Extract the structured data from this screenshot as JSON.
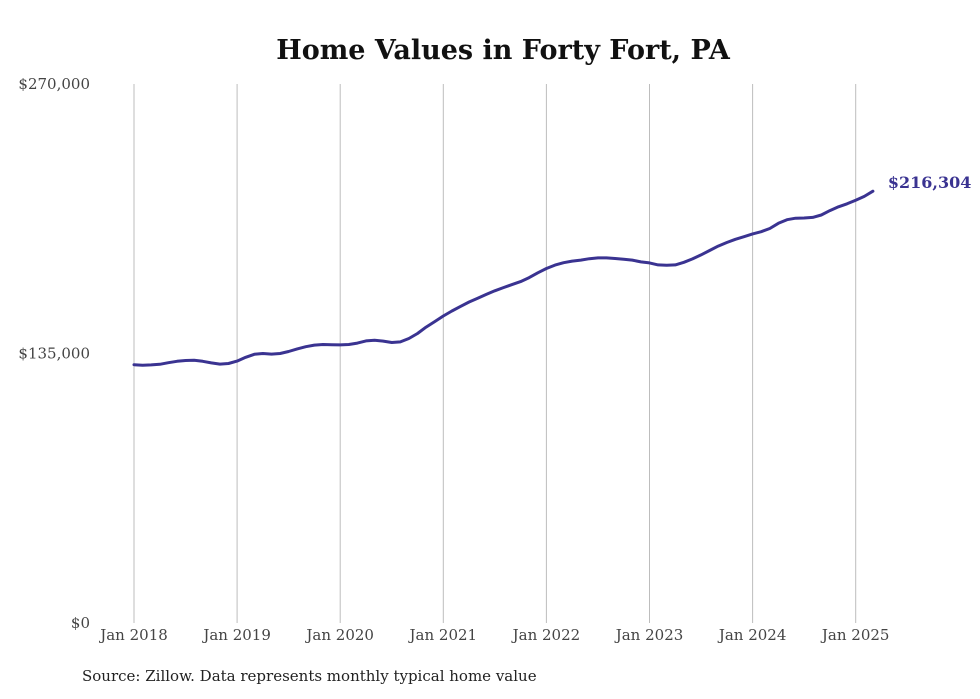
{
  "chart_data": {
    "type": "line",
    "title": "Home Values in Forty Fort, PA",
    "xlabel": "",
    "ylabel": "",
    "ylim": [
      0,
      270000
    ],
    "y_ticks": [
      "$270,000",
      "$135,000",
      "$0"
    ],
    "y_tick_values": [
      270000,
      135000,
      0
    ],
    "x_ticks": [
      "Jan 2018",
      "Jan 2019",
      "Jan 2020",
      "Jan 2021",
      "Jan 2022",
      "Jan 2023",
      "Jan 2024",
      "Jan 2025"
    ],
    "grid": "vertical",
    "line_color": "#3a3391",
    "end_label": "$216,304",
    "series": [
      {
        "points": [
          [
            "2018-01",
            129400
          ],
          [
            "2018-02",
            129100
          ],
          [
            "2018-03",
            129300
          ],
          [
            "2018-04",
            129600
          ],
          [
            "2018-05",
            130400
          ],
          [
            "2018-06",
            131100
          ],
          [
            "2018-07",
            131500
          ],
          [
            "2018-08",
            131600
          ],
          [
            "2018-09",
            131100
          ],
          [
            "2018-10",
            130300
          ],
          [
            "2018-11",
            129700
          ],
          [
            "2018-12",
            130000
          ],
          [
            "2019-01",
            131200
          ],
          [
            "2019-02",
            133100
          ],
          [
            "2019-03",
            134600
          ],
          [
            "2019-04",
            135000
          ],
          [
            "2019-05",
            134700
          ],
          [
            "2019-06",
            135000
          ],
          [
            "2019-07",
            136000
          ],
          [
            "2019-08",
            137300
          ],
          [
            "2019-09",
            138400
          ],
          [
            "2019-10",
            139200
          ],
          [
            "2019-11",
            139500
          ],
          [
            "2019-12",
            139400
          ],
          [
            "2020-01",
            139300
          ],
          [
            "2020-02",
            139500
          ],
          [
            "2020-03",
            140200
          ],
          [
            "2020-04",
            141300
          ],
          [
            "2020-05",
            141600
          ],
          [
            "2020-06",
            141200
          ],
          [
            "2020-07",
            140500
          ],
          [
            "2020-08",
            140800
          ],
          [
            "2020-09",
            142500
          ],
          [
            "2020-10",
            145000
          ],
          [
            "2020-11",
            148200
          ],
          [
            "2020-12",
            151000
          ],
          [
            "2021-01",
            153800
          ],
          [
            "2021-02",
            156300
          ],
          [
            "2021-03",
            158600
          ],
          [
            "2021-04",
            160800
          ],
          [
            "2021-05",
            162700
          ],
          [
            "2021-06",
            164600
          ],
          [
            "2021-07",
            166400
          ],
          [
            "2021-08",
            168000
          ],
          [
            "2021-09",
            169500
          ],
          [
            "2021-10",
            171000
          ],
          [
            "2021-11",
            173000
          ],
          [
            "2021-12",
            175400
          ],
          [
            "2022-01",
            177600
          ],
          [
            "2022-02",
            179300
          ],
          [
            "2022-03",
            180500
          ],
          [
            "2022-04",
            181300
          ],
          [
            "2022-05",
            181800
          ],
          [
            "2022-06",
            182500
          ],
          [
            "2022-07",
            182900
          ],
          [
            "2022-08",
            182900
          ],
          [
            "2022-09",
            182600
          ],
          [
            "2022-10",
            182200
          ],
          [
            "2022-11",
            181800
          ],
          [
            "2022-12",
            180900
          ],
          [
            "2023-01",
            180400
          ],
          [
            "2023-02",
            179400
          ],
          [
            "2023-03",
            179200
          ],
          [
            "2023-04",
            179400
          ],
          [
            "2023-05",
            180700
          ],
          [
            "2023-06",
            182400
          ],
          [
            "2023-07",
            184400
          ],
          [
            "2023-08",
            186600
          ],
          [
            "2023-09",
            188800
          ],
          [
            "2023-10",
            190600
          ],
          [
            "2023-11",
            192200
          ],
          [
            "2023-12",
            193500
          ],
          [
            "2024-01",
            194900
          ],
          [
            "2024-02",
            196000
          ],
          [
            "2024-03",
            197600
          ],
          [
            "2024-04",
            200200
          ],
          [
            "2024-05",
            202000
          ],
          [
            "2024-06",
            202800
          ],
          [
            "2024-07",
            202900
          ],
          [
            "2024-08",
            203200
          ],
          [
            "2024-09",
            204400
          ],
          [
            "2024-10",
            206600
          ],
          [
            "2024-11",
            208500
          ],
          [
            "2024-12",
            210000
          ],
          [
            "2025-01",
            211800
          ],
          [
            "2025-02",
            213700
          ],
          [
            "2025-03",
            216304
          ]
        ]
      }
    ]
  },
  "footer": {
    "source": "Source: Zillow. Data represents monthly typical home value"
  }
}
